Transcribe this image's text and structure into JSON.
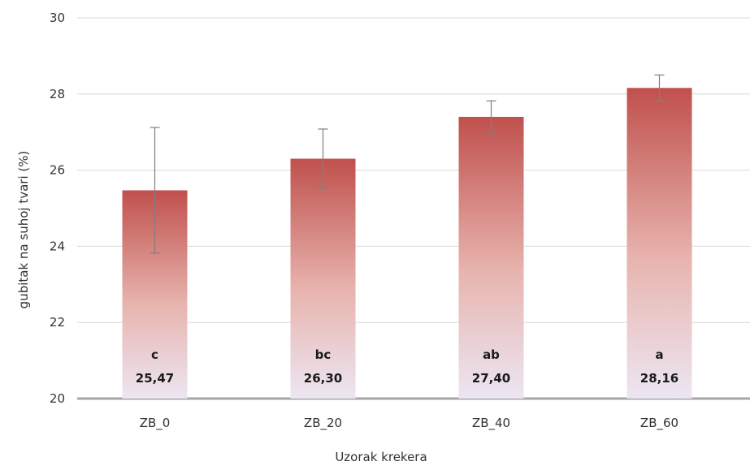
{
  "chart_data": {
    "type": "bar",
    "categories": [
      "ZB_0",
      "ZB_20",
      "ZB_40",
      "ZB_60"
    ],
    "series": [
      {
        "values": [
          25.47,
          26.3,
          27.4,
          28.16
        ],
        "errors": [
          1.65,
          0.78,
          0.42,
          0.34
        ],
        "value_labels": [
          "25,47",
          "26,30",
          "27,40",
          "28,16"
        ],
        "letter_labels": [
          "c",
          "bc",
          "ab",
          "a"
        ]
      }
    ],
    "xlabel": "Uzorak krekera",
    "ylabel": "gubitak na suhoj tvari (%)",
    "ylim": [
      20,
      30
    ],
    "yticks": [
      20,
      22,
      24,
      26,
      28,
      30
    ],
    "grid": true,
    "legend": "none",
    "colors": {
      "bar_top": "#c0504d",
      "bar_bottom": "#ece6f2",
      "grid": "#d9d9d9",
      "baseline": "#a6a6a6",
      "error_bar": "#7f7f7f"
    }
  }
}
